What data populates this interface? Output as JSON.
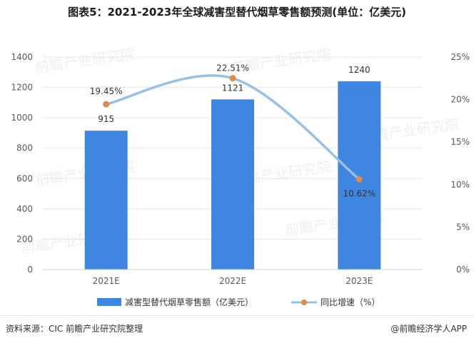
{
  "title": "图表5：2021-2023年全球减害型替代烟草零售额预测(单位：亿美元)",
  "source": "资料来源：CIC 前瞻产业研究院整理",
  "brand": "@前瞻经济学人APP",
  "watermark": "前瞻产业研究院",
  "colors": {
    "bar": "#3f86e0",
    "line": "#98bfe6",
    "marker": "#e08a4c",
    "grid": "#e6e6e6",
    "axis_text": "#595959"
  },
  "chart_data": {
    "type": "bar",
    "categories": [
      "2021E",
      "2022E",
      "2023E"
    ],
    "series": [
      {
        "name": "减害型替代烟草零售额（亿美元）",
        "type": "bar",
        "axis": "left",
        "values": [
          915,
          1121,
          1240
        ],
        "labels": [
          "915",
          "1121",
          "1240"
        ]
      },
      {
        "name": "同比增速（%）",
        "type": "line",
        "axis": "right",
        "smooth": true,
        "values": [
          19.45,
          22.51,
          10.62
        ],
        "labels": [
          "19.45%",
          "22.51%",
          "10.62%"
        ]
      }
    ],
    "y_left": {
      "min": 0,
      "max": 1400,
      "ticks": [
        "0",
        "200",
        "400",
        "600",
        "800",
        "1000",
        "1200",
        "1400"
      ]
    },
    "y_right": {
      "min": 0,
      "max": 25,
      "ticks": [
        "0%",
        "5%",
        "10%",
        "15%",
        "20%",
        "25%"
      ]
    },
    "grid": true,
    "legend_position": "bottom"
  }
}
